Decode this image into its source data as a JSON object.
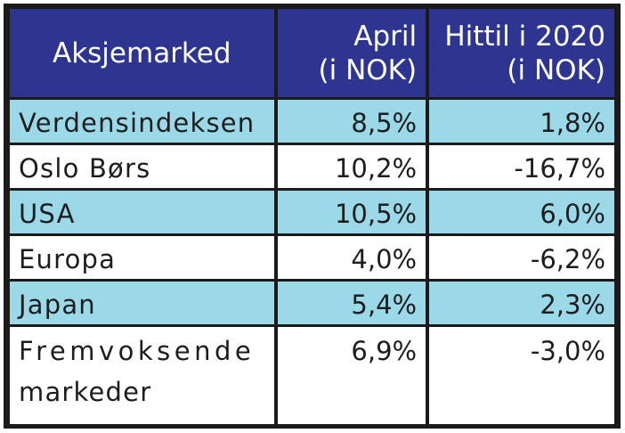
{
  "table": {
    "headers": [
      {
        "line1": "Aksjemarked",
        "line2": ""
      },
      {
        "line1": "April",
        "line2": "(i NOK)"
      },
      {
        "line1": "Hittil i 2020",
        "line2": "(i NOK)"
      }
    ],
    "rows": [
      {
        "label": "Verdensindeksen",
        "label2": "",
        "april": "8,5%",
        "ytd": "1,8%"
      },
      {
        "label": "Oslo Børs",
        "label2": "",
        "april": "10,2%",
        "ytd": "-16,7%"
      },
      {
        "label": "USA",
        "label2": "",
        "april": "10,5%",
        "ytd": "6,0%"
      },
      {
        "label": "Europa",
        "label2": "",
        "april": "4,0%",
        "ytd": "-6,2%"
      },
      {
        "label": "Japan",
        "label2": "",
        "april": "5,4%",
        "ytd": "2,3%"
      },
      {
        "label": "Fremvoksende",
        "label2": "markeder",
        "april": "6,9%",
        "ytd": "-3,0%"
      }
    ]
  },
  "colors": {
    "header_bg": "#2e3591",
    "shaded_row_bg": "#9bd9e8",
    "border": "#1b1b1b"
  }
}
